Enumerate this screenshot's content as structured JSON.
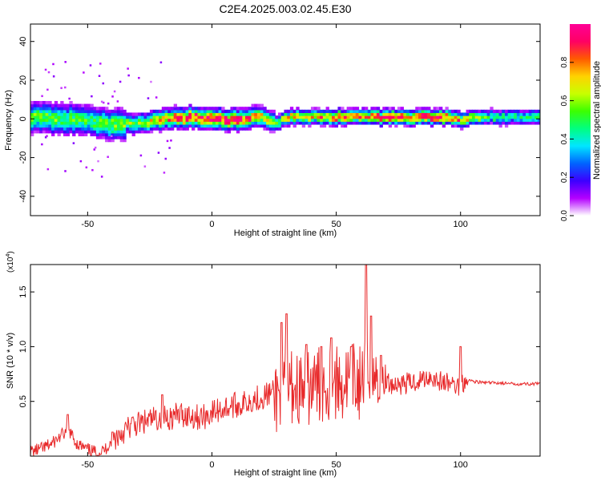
{
  "title": "C2E4.2025.003.02.45.E30",
  "colors": {
    "signal": "#e8292a",
    "axis": "#000000",
    "background_panel": "#ffffff"
  },
  "chart_data": [
    {
      "type": "heatmap",
      "title": "C2E4.2025.003.02.45.E30",
      "xlabel": "Height of straight line (km)",
      "ylabel": "Frequency (Hz)",
      "xlim": [
        -73,
        132
      ],
      "ylim": [
        -50,
        49
      ],
      "x_ticks": [
        -50,
        0,
        50,
        100
      ],
      "x_tick_labels": [
        "-50",
        "0",
        "50",
        "100"
      ],
      "y_ticks": [
        -40,
        -20,
        0,
        20,
        40
      ],
      "y_tick_labels": [
        "-40",
        "-20",
        "0",
        "20",
        "40"
      ],
      "colorbar": {
        "label": "Normalized spectral amplitude",
        "range": [
          0,
          1
        ],
        "ticks": [
          0.0,
          0.2,
          0.4,
          0.6,
          0.8
        ],
        "tick_labels": [
          "0.0",
          "0.2",
          "0.4",
          "0.6",
          "0.8"
        ],
        "colormap": [
          "#ffffff",
          "#b400ff",
          "#3c00ff",
          "#0064ff",
          "#00e6ff",
          "#00ff80",
          "#3cff00",
          "#c8ff00",
          "#ffd200",
          "#ff5a00",
          "#ff0064",
          "#ff0096"
        ]
      },
      "ridge": {
        "x": [
          -72,
          -60,
          -50,
          -40,
          -30,
          -20,
          -10,
          0,
          10,
          20,
          25,
          30,
          40,
          50,
          60,
          70,
          80,
          90,
          100,
          110,
          120,
          132
        ],
        "center_hz": [
          1,
          0,
          -1,
          -3,
          -2,
          0,
          1,
          0,
          0,
          1,
          -2,
          1,
          1,
          1,
          1,
          1,
          1,
          1,
          0,
          1,
          1,
          1
        ],
        "peak_amplitude": [
          0.55,
          0.55,
          0.5,
          0.6,
          0.55,
          0.75,
          0.85,
          0.95,
          0.95,
          0.7,
          0.5,
          0.7,
          0.7,
          0.85,
          0.8,
          0.9,
          0.9,
          0.9,
          0.75,
          0.5,
          0.45,
          0.45
        ]
      }
    },
    {
      "type": "line",
      "xlabel": "Height of straight line (km)",
      "ylabel": "SNR (10 * v/v)",
      "y_exponent_label": "(x10",
      "y_exponent_power": "4",
      "y_exponent_close": ")",
      "xlim": [
        -73,
        132
      ],
      "ylim": [
        0,
        1.75
      ],
      "x_ticks": [
        -50,
        0,
        50,
        100
      ],
      "x_tick_labels": [
        "-50",
        "0",
        "50",
        "100"
      ],
      "y_ticks": [
        0.5,
        1.0,
        1.5
      ],
      "y_tick_labels": [
        "0.5",
        "1.0",
        "1.5"
      ],
      "series": [
        {
          "name": "SNR",
          "color": "#e8292a",
          "x": [
            -73,
            -68,
            -64,
            -60,
            -57,
            -55,
            -52,
            -49,
            -46,
            -43,
            -40,
            -36,
            -32,
            -28,
            -24,
            -20,
            -16,
            -12,
            -8,
            -4,
            0,
            4,
            8,
            12,
            16,
            20,
            24,
            27,
            30,
            33,
            36,
            40,
            44,
            48,
            52,
            56,
            59,
            61,
            64,
            68,
            72,
            76,
            80,
            84,
            88,
            92,
            96,
            99,
            102,
            106,
            110,
            115,
            120,
            125,
            132
          ],
          "values": [
            0.04,
            0.07,
            0.12,
            0.2,
            0.22,
            0.13,
            0.08,
            0.05,
            0.03,
            0.06,
            0.15,
            0.22,
            0.28,
            0.3,
            0.33,
            0.36,
            0.36,
            0.38,
            0.37,
            0.35,
            0.4,
            0.43,
            0.46,
            0.47,
            0.52,
            0.54,
            0.58,
            0.55,
            0.62,
            0.64,
            0.6,
            0.63,
            0.65,
            0.68,
            0.65,
            0.7,
            0.66,
            0.72,
            0.7,
            0.7,
            0.66,
            0.66,
            0.67,
            0.7,
            0.73,
            0.68,
            0.66,
            0.64,
            0.7,
            0.68,
            0.67,
            0.67,
            0.66,
            0.66,
            0.66
          ],
          "peaks": [
            {
              "x": -58,
              "value": 0.38
            },
            {
              "x": -40,
              "value": 0.22
            },
            {
              "x": -20,
              "value": 0.56
            },
            {
              "x": 28,
              "value": 1.22
            },
            {
              "x": 30,
              "value": 1.3
            },
            {
              "x": 38,
              "value": 1.02
            },
            {
              "x": 44,
              "value": 1.0
            },
            {
              "x": 48,
              "value": 1.08
            },
            {
              "x": 56,
              "value": 1.0
            },
            {
              "x": 62,
              "value": 1.75
            },
            {
              "x": 64,
              "value": 1.28
            },
            {
              "x": 68,
              "value": 0.92
            },
            {
              "x": 100,
              "value": 1.0
            }
          ]
        }
      ]
    }
  ]
}
